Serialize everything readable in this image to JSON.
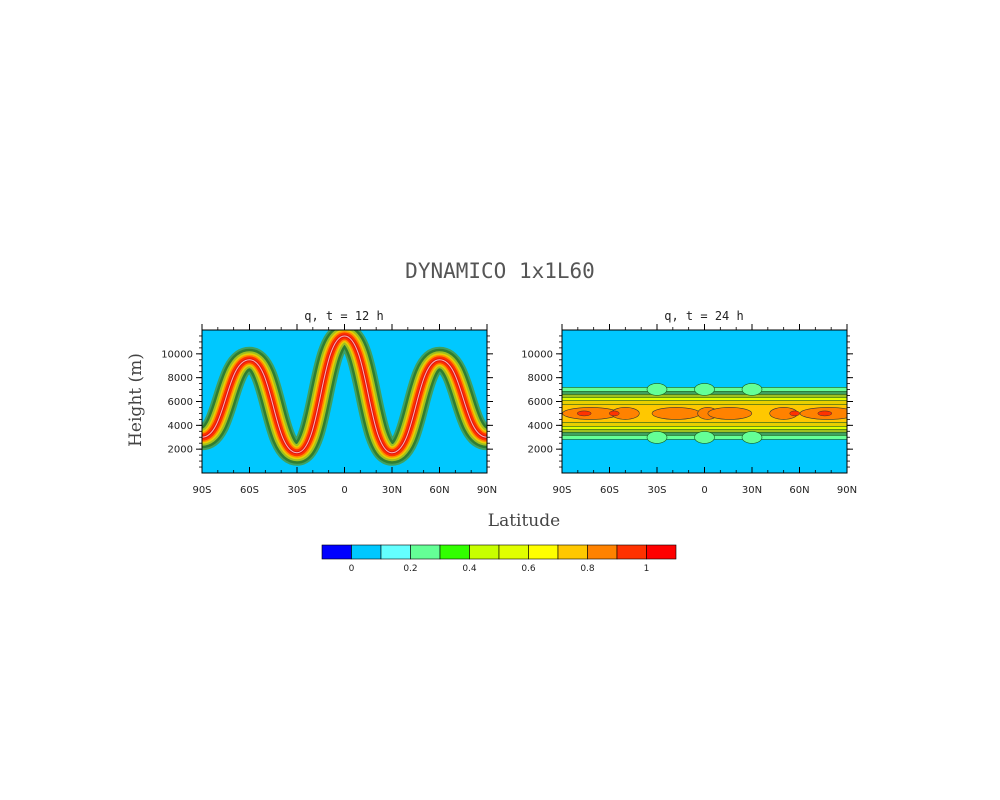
{
  "figure": {
    "title": "DYNAMICO 1x1L60",
    "xlabel": "Latitude",
    "ylabel": "Height (m)"
  },
  "chart_data": [
    {
      "type": "heatmap",
      "title": "q, t = 12 h",
      "x_ticks": [
        "90S",
        "60S",
        "30S",
        "0",
        "30N",
        "60N",
        "90N"
      ],
      "x_range": [
        -90,
        90
      ],
      "y_ticks": [
        "2000",
        "4000",
        "6000",
        "8000",
        "10000"
      ],
      "y_range": [
        0,
        12000
      ],
      "background_value": 0.1,
      "band": {
        "shape": "wave",
        "center_height": [
          [
            -90,
            3000
          ],
          [
            -60,
            9500
          ],
          [
            -30,
            1700
          ],
          [
            0,
            11500
          ],
          [
            30,
            1700
          ],
          [
            60,
            9500
          ],
          [
            90,
            3000
          ]
        ],
        "peak_value": 1.0
      }
    },
    {
      "type": "heatmap",
      "title": "q, t = 24 h",
      "x_ticks": [
        "90S",
        "60S",
        "30S",
        "0",
        "30N",
        "60N",
        "90N"
      ],
      "x_range": [
        -90,
        90
      ],
      "y_ticks": [
        "2000",
        "4000",
        "6000",
        "8000",
        "10000"
      ],
      "y_range": [
        0,
        12000
      ],
      "background_value": 0.1,
      "band": {
        "shape": "flat",
        "center_height": 5000,
        "peak_value": 0.9
      }
    }
  ],
  "colorbar": {
    "colors": [
      "#0000ff",
      "#00c8ff",
      "#64ffff",
      "#64ff96",
      "#32ff00",
      "#c8ff00",
      "#e1ff00",
      "#ffff00",
      "#ffc800",
      "#ff8200",
      "#ff3200",
      "#ff0000"
    ],
    "labels": [
      "0",
      "0.2",
      "0.4",
      "0.6",
      "0.8",
      "1"
    ]
  }
}
